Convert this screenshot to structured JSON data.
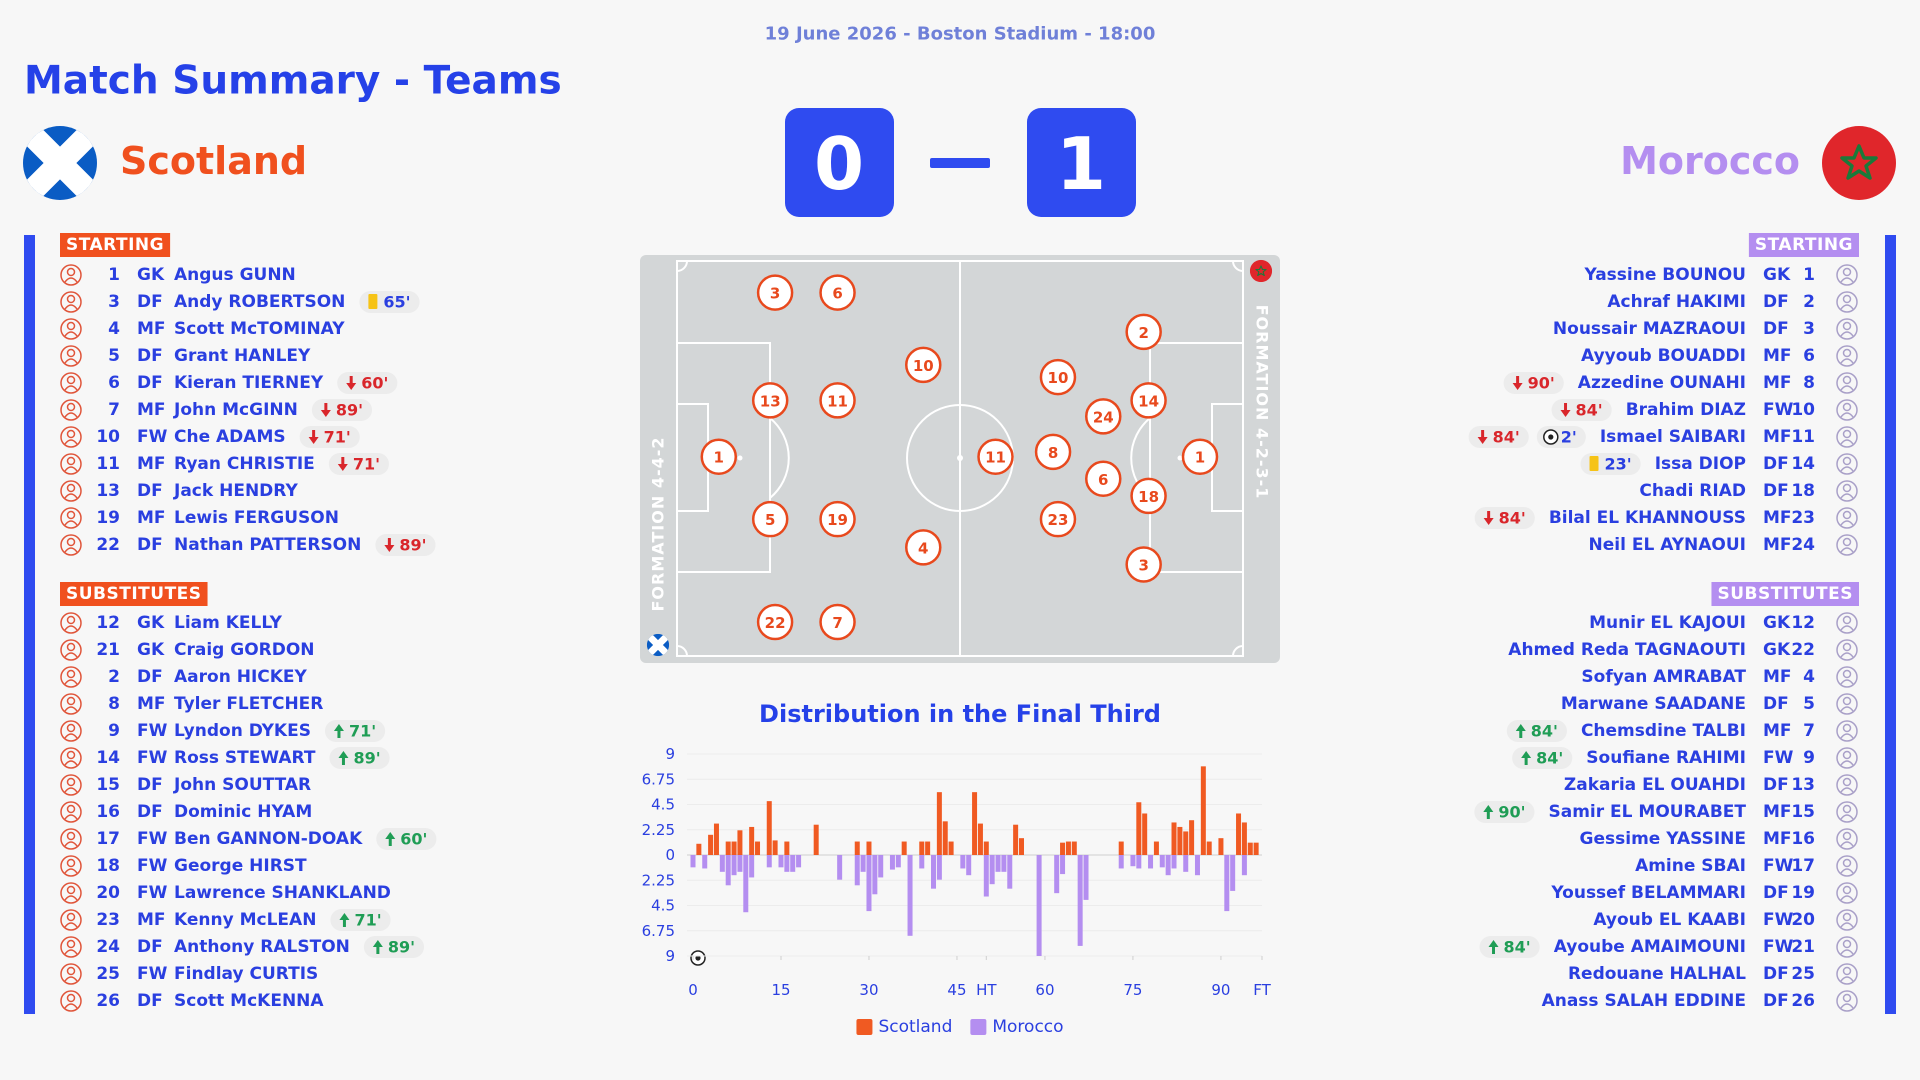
{
  "header": {
    "date_line": "19 June 2026 - Boston Stadium - 18:00",
    "title": "Match Summary - Teams"
  },
  "home": {
    "name": "Scotland",
    "score": 0,
    "formation": "FORMATION 4-4-2",
    "starting_label": "STARTING",
    "substitutes_label": "SUBSTITUTES",
    "starting": [
      {
        "number": 1,
        "position": "GK",
        "name": "Angus GUNN"
      },
      {
        "number": 3,
        "position": "DF",
        "name": "Andy ROBERTSON",
        "events": [
          {
            "kind": "yellow-card",
            "minute": "65'"
          }
        ]
      },
      {
        "number": 4,
        "position": "MF",
        "name": "Scott McTOMINAY"
      },
      {
        "number": 5,
        "position": "DF",
        "name": "Grant HANLEY"
      },
      {
        "number": 6,
        "position": "DF",
        "name": "Kieran TIERNEY",
        "events": [
          {
            "kind": "sub-off",
            "minute": "60'"
          }
        ]
      },
      {
        "number": 7,
        "position": "MF",
        "name": "John McGINN",
        "events": [
          {
            "kind": "sub-off",
            "minute": "89'"
          }
        ]
      },
      {
        "number": 10,
        "position": "FW",
        "name": "Che ADAMS",
        "events": [
          {
            "kind": "sub-off",
            "minute": "71'"
          }
        ]
      },
      {
        "number": 11,
        "position": "MF",
        "name": "Ryan CHRISTIE",
        "events": [
          {
            "kind": "sub-off",
            "minute": "71'"
          }
        ]
      },
      {
        "number": 13,
        "position": "DF",
        "name": "Jack HENDRY"
      },
      {
        "number": 19,
        "position": "MF",
        "name": "Lewis FERGUSON"
      },
      {
        "number": 22,
        "position": "DF",
        "name": "Nathan PATTERSON",
        "events": [
          {
            "kind": "sub-off",
            "minute": "89'"
          }
        ]
      }
    ],
    "substitutes": [
      {
        "number": 12,
        "position": "GK",
        "name": "Liam KELLY"
      },
      {
        "number": 21,
        "position": "GK",
        "name": "Craig GORDON"
      },
      {
        "number": 2,
        "position": "DF",
        "name": "Aaron HICKEY"
      },
      {
        "number": 8,
        "position": "MF",
        "name": "Tyler FLETCHER"
      },
      {
        "number": 9,
        "position": "FW",
        "name": "Lyndon DYKES",
        "events": [
          {
            "kind": "sub-on",
            "minute": "71'"
          }
        ]
      },
      {
        "number": 14,
        "position": "FW",
        "name": "Ross STEWART",
        "events": [
          {
            "kind": "sub-on",
            "minute": "89'"
          }
        ]
      },
      {
        "number": 15,
        "position": "DF",
        "name": "John SOUTTAR"
      },
      {
        "number": 16,
        "position": "DF",
        "name": "Dominic HYAM"
      },
      {
        "number": 17,
        "position": "FW",
        "name": "Ben GANNON-DOAK",
        "events": [
          {
            "kind": "sub-on",
            "minute": "60'"
          }
        ]
      },
      {
        "number": 18,
        "position": "FW",
        "name": "George HIRST"
      },
      {
        "number": 20,
        "position": "FW",
        "name": "Lawrence SHANKLAND"
      },
      {
        "number": 23,
        "position": "MF",
        "name": "Kenny McLEAN",
        "events": [
          {
            "kind": "sub-on",
            "minute": "71'"
          }
        ]
      },
      {
        "number": 24,
        "position": "DF",
        "name": "Anthony RALSTON",
        "events": [
          {
            "kind": "sub-on",
            "minute": "89'"
          }
        ]
      },
      {
        "number": 25,
        "position": "FW",
        "name": "Findlay CURTIS"
      },
      {
        "number": 26,
        "position": "DF",
        "name": "Scott McKENNA"
      }
    ],
    "pitch": [
      1,
      3,
      6,
      13,
      11,
      5,
      19,
      10,
      4,
      22,
      7
    ]
  },
  "away": {
    "name": "Morocco",
    "score": 1,
    "formation": "FORMATION 4-2-3-1",
    "starting_label": "STARTING",
    "substitutes_label": "SUBSTITUTES",
    "starting": [
      {
        "number": 1,
        "position": "GK",
        "name": "Yassine BOUNOU"
      },
      {
        "number": 2,
        "position": "DF",
        "name": "Achraf HAKIMI"
      },
      {
        "number": 3,
        "position": "DF",
        "name": "Noussair MAZRAOUI"
      },
      {
        "number": 6,
        "position": "MF",
        "name": "Ayyoub BOUADDI"
      },
      {
        "number": 8,
        "position": "MF",
        "name": "Azzedine OUNAHI",
        "events": [
          {
            "kind": "sub-off",
            "minute": "90'"
          }
        ]
      },
      {
        "number": 10,
        "position": "FW",
        "name": "Brahim DIAZ",
        "events": [
          {
            "kind": "sub-off",
            "minute": "84'"
          }
        ]
      },
      {
        "number": 11,
        "position": "MF",
        "name": "Ismael SAIBARI",
        "events": [
          {
            "kind": "sub-off",
            "minute": "84'"
          },
          {
            "kind": "goal",
            "minute": "2'"
          }
        ]
      },
      {
        "number": 14,
        "position": "DF",
        "name": "Issa DIOP",
        "events": [
          {
            "kind": "yellow-card",
            "minute": "23'"
          }
        ]
      },
      {
        "number": 18,
        "position": "DF",
        "name": "Chadi RIAD"
      },
      {
        "number": 23,
        "position": "MF",
        "name": "Bilal EL KHANNOUSS",
        "events": [
          {
            "kind": "sub-off",
            "minute": "84'"
          }
        ]
      },
      {
        "number": 24,
        "position": "MF",
        "name": "Neil EL AYNAOUI"
      }
    ],
    "substitutes": [
      {
        "number": 12,
        "position": "GK",
        "name": "Munir EL KAJOUI"
      },
      {
        "number": 22,
        "position": "GK",
        "name": "Ahmed Reda TAGNAOUTI"
      },
      {
        "number": 4,
        "position": "MF",
        "name": "Sofyan AMRABAT"
      },
      {
        "number": 5,
        "position": "DF",
        "name": "Marwane SAADANE"
      },
      {
        "number": 7,
        "position": "MF",
        "name": "Chemsdine TALBI",
        "events": [
          {
            "kind": "sub-on",
            "minute": "84'"
          }
        ]
      },
      {
        "number": 9,
        "position": "FW",
        "name": "Soufiane RAHIMI",
        "events": [
          {
            "kind": "sub-on",
            "minute": "84'"
          }
        ]
      },
      {
        "number": 13,
        "position": "DF",
        "name": "Zakaria EL OUAHDI"
      },
      {
        "number": 15,
        "position": "MF",
        "name": "Samir EL MOURABET",
        "events": [
          {
            "kind": "sub-on",
            "minute": "90'"
          }
        ]
      },
      {
        "number": 16,
        "position": "MF",
        "name": "Gessime YASSINE"
      },
      {
        "number": 17,
        "position": "FW",
        "name": "Amine SBAI"
      },
      {
        "number": 19,
        "position": "DF",
        "name": "Youssef BELAMMARI"
      },
      {
        "number": 20,
        "position": "FW",
        "name": "Ayoub EL KAABI"
      },
      {
        "number": 21,
        "position": "FW",
        "name": "Ayoube AMAIMOUNI",
        "events": [
          {
            "kind": "sub-on",
            "minute": "84'"
          }
        ]
      },
      {
        "number": 25,
        "position": "DF",
        "name": "Redouane HALHAL"
      },
      {
        "number": 26,
        "position": "DF",
        "name": "Anass SALAH EDDINE"
      }
    ],
    "pitch": [
      1,
      2,
      14,
      18,
      3,
      24,
      6,
      10,
      8,
      23,
      11
    ]
  },
  "chart_data": {
    "type": "bar",
    "title": "Distribution in the Final Third",
    "xlim": [
      0,
      97
    ],
    "xticks": [
      0,
      15,
      30,
      45,
      {
        "value": 50,
        "label": "HT"
      },
      60,
      75,
      90,
      {
        "value": 97,
        "label": "FT"
      }
    ],
    "ylim": [
      -9,
      9
    ],
    "yticks": [
      9,
      6.75,
      4.5,
      2.25,
      0,
      {
        "value": -2.25,
        "label": "2.25"
      },
      {
        "value": -4.5,
        "label": "4.5"
      },
      {
        "value": -6.75,
        "label": "6.75"
      },
      {
        "value": -9,
        "label": "9"
      }
    ],
    "grid": true,
    "series": [
      {
        "name": "Scotland",
        "color": "#f05a22",
        "x": [
          1,
          3,
          4,
          6,
          7,
          8,
          10,
          11,
          13,
          14,
          16,
          21,
          28,
          30,
          36,
          39,
          40,
          42,
          43,
          44,
          48,
          49,
          50,
          55,
          56,
          63,
          64,
          65,
          73,
          76,
          77,
          79,
          82,
          83,
          84,
          85,
          87,
          88,
          90,
          93,
          94,
          95,
          96
        ],
        "values": [
          1,
          1.8,
          2.8,
          1.2,
          1.2,
          2.2,
          2.5,
          1.2,
          4.8,
          1.3,
          1.2,
          2.7,
          1.2,
          1.2,
          1.2,
          1.2,
          1.2,
          5.6,
          3,
          1.2,
          5.6,
          2.8,
          1.2,
          2.7,
          1.5,
          1.1,
          1.2,
          1.2,
          1.2,
          4.7,
          3.7,
          1.2,
          2.9,
          2.5,
          2.1,
          3.1,
          7.9,
          1.2,
          1.5,
          3.7,
          2.9,
          1.1,
          1.1
        ]
      },
      {
        "name": "Morocco",
        "color": "#b48ef0",
        "x": [
          0,
          2,
          5,
          6,
          7,
          8,
          9,
          10,
          13,
          15,
          16,
          17,
          18,
          25,
          28,
          29,
          30,
          31,
          32,
          34,
          35,
          37,
          39,
          41,
          42,
          46,
          47,
          50,
          51,
          52,
          53,
          54,
          59,
          62,
          63,
          66,
          67,
          73,
          75,
          76,
          78,
          80,
          81,
          82,
          84,
          86,
          91,
          92,
          94
        ],
        "values": [
          -1.1,
          -1.2,
          -1.5,
          -2.7,
          -1.8,
          -1.5,
          -5.1,
          -2,
          -1.1,
          -1.1,
          -1.5,
          -1.5,
          -1.1,
          -2.2,
          -2.7,
          -1.5,
          -5,
          -3.5,
          -2,
          -1.3,
          -1.1,
          -7.2,
          -1.2,
          -3,
          -2.2,
          -1.2,
          -1.8,
          -3.7,
          -2.6,
          -1.5,
          -1.5,
          -3,
          -9,
          -3.4,
          -1.7,
          -8.1,
          -4,
          -1.2,
          -1,
          -1.2,
          -1.2,
          -1.1,
          -1.8,
          -1.2,
          -1.5,
          -1.8,
          -5,
          -3.2,
          -1.8
        ]
      }
    ]
  }
}
